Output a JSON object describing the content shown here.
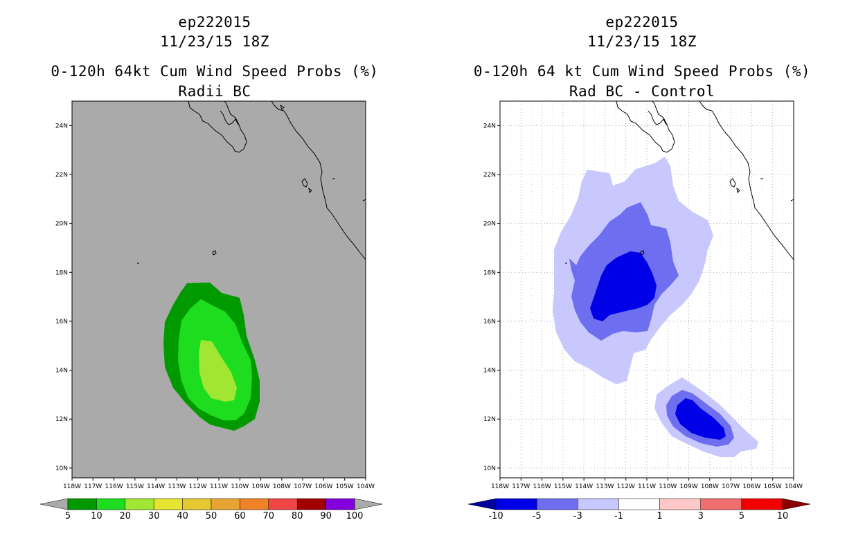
{
  "left_panel": {
    "title_line1": "ep222015",
    "title_line2": "11/23/15 18Z",
    "title_line3": "0-120h 64kt Cum Wind Speed Probs (%)",
    "title_line4": "Radii BC",
    "background_color": "#aaaaaa",
    "shading": [
      {
        "range": "5-10",
        "color": "#009a00"
      },
      {
        "range": "10-20",
        "color": "#1edc1e"
      },
      {
        "range": "20-30",
        "color": "#a0e632"
      }
    ],
    "colorbar": {
      "labels": [
        "5",
        "10",
        "20",
        "30",
        "40",
        "50",
        "60",
        "70",
        "80",
        "90",
        "100"
      ],
      "colors": [
        "#009a00",
        "#1edc1e",
        "#a0e632",
        "#e6e632",
        "#e6c832",
        "#e6a532",
        "#f08228",
        "#f04646",
        "#a00000",
        "#8200dc"
      ],
      "left_triangle_color": "#aaaaaa",
      "right_triangle_color": "#aaaaaa"
    }
  },
  "right_panel": {
    "title_line1": "ep222015",
    "title_line2": "11/23/15 18Z",
    "title_line3": "0-120h 64 kt Cum Wind Speed Probs (%)",
    "title_line4": "Rad BC - Control",
    "background_color": "#ffffff",
    "shading": [
      {
        "range": "-3 to -1",
        "color": "#c8c8ff"
      },
      {
        "range": "-5 to -3",
        "color": "#6e6ef0"
      },
      {
        "range": "-10 to -5",
        "color": "#0000e6"
      }
    ],
    "colorbar": {
      "labels": [
        "-10",
        "-5",
        "-3",
        "-1",
        "1",
        "3",
        "5",
        "10"
      ],
      "colors": [
        "#0000e6",
        "#6e6ef0",
        "#c8c8ff",
        "#ffffff",
        "#ffc8c8",
        "#f06e6e",
        "#f00000"
      ],
      "left_triangle_color": "#00009a",
      "right_triangle_color": "#8b0000"
    }
  },
  "axes": {
    "lon_labels": [
      "118W",
      "117W",
      "116W",
      "115W",
      "114W",
      "113W",
      "112W",
      "111W",
      "110W",
      "109W",
      "108W",
      "107W",
      "106W",
      "105W",
      "104W"
    ],
    "lat_labels": [
      "10N",
      "12N",
      "14N",
      "16N",
      "18N",
      "20N",
      "22N",
      "24N"
    ],
    "lon_range": [
      -118,
      -104
    ],
    "lat_range": [
      9.6,
      25
    ]
  }
}
